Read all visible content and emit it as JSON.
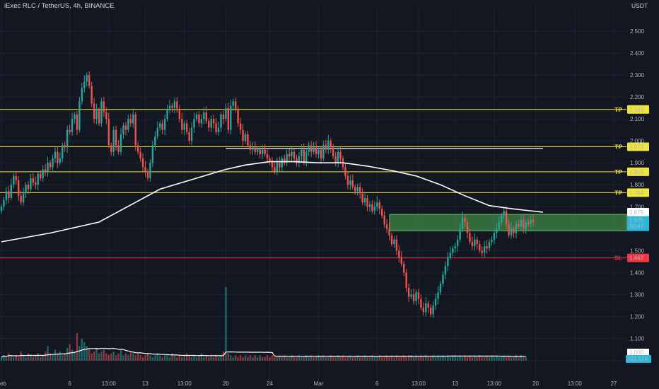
{
  "header": {
    "symbol_title": "iExec RLC / TetherUS, 4h, BINANCE",
    "currency": "USDT"
  },
  "colors": {
    "background": "#131722",
    "grid": "#1f2330",
    "up_candle": "#26a69a",
    "down_candle": "#ef5350",
    "tp_line": "#f2e53a",
    "sl_line": "#f23645",
    "zone_fill": "#4caf50",
    "moving_average": "#ffffff",
    "current_price_tag": "#2bb7da"
  },
  "chart_data": {
    "type": "candlestick",
    "symbol": "RLCUSDT",
    "timeframe": "4h",
    "exchange": "BINANCE",
    "y_axis": {
      "ylim": [
        1.0,
        2.61
      ],
      "ticks": [
        "2.500",
        "2.400",
        "2.300",
        "2.200",
        "2.100",
        "2.000",
        "1.900",
        "1.800",
        "1.700",
        "1.600",
        "1.500",
        "1.400",
        "1.300",
        "1.200",
        "1.100",
        "1.000"
      ]
    },
    "x_axis": {
      "ticks": [
        {
          "label": "Feb",
          "bar": 0
        },
        {
          "label": "6",
          "bar": 28
        },
        {
          "label": "13:00",
          "bar": 44
        },
        {
          "label": "13",
          "bar": 59
        },
        {
          "label": "13:00",
          "bar": 75
        },
        {
          "label": "20",
          "bar": 92
        },
        {
          "label": "24",
          "bar": 110
        },
        {
          "label": "Mar",
          "bar": 130
        },
        {
          "label": "6",
          "bar": 154
        },
        {
          "label": "13:00",
          "bar": 171
        },
        {
          "label": "13",
          "bar": 186
        },
        {
          "label": "13:00",
          "bar": 202
        },
        {
          "label": "20",
          "bar": 219
        },
        {
          "label": "13:00",
          "bar": 235
        },
        {
          "label": "27",
          "bar": 251
        }
      ]
    },
    "series_close": [
      1.7,
      1.73,
      1.77,
      1.74,
      1.8,
      1.84,
      1.82,
      1.75,
      1.72,
      1.76,
      1.8,
      1.78,
      1.83,
      1.81,
      1.8,
      1.85,
      1.83,
      1.87,
      1.86,
      1.9,
      1.88,
      1.92,
      1.95,
      1.9,
      1.92,
      1.98,
      1.97,
      2.05,
      2.04,
      2.1,
      2.12,
      2.05,
      2.18,
      2.24,
      2.27,
      2.3,
      2.25,
      2.17,
      2.1,
      2.14,
      2.08,
      2.18,
      2.13,
      2.1,
      1.98,
      1.95,
      2.05,
      1.98,
      1.95,
      2.03,
      2.07,
      2.05,
      2.1,
      2.08,
      2.12,
      1.98,
      1.95,
      1.92,
      1.88,
      1.86,
      1.83,
      1.9,
      1.98,
      2.02,
      2.06,
      2.08,
      2.05,
      2.1,
      2.14,
      2.16,
      2.15,
      2.18,
      2.14,
      2.1,
      2.05,
      2.08,
      2.04,
      2.0,
      2.06,
      2.1,
      2.12,
      2.08,
      2.1,
      2.13,
      2.09,
      2.06,
      2.1,
      2.08,
      2.04,
      2.06,
      2.12,
      2.1,
      2.15,
      2.05,
      2.16,
      2.18,
      2.14,
      2.08,
      2.05,
      2.0,
      2.03,
      1.98,
      1.96,
      1.97,
      1.95,
      1.96,
      1.94,
      1.96,
      1.94,
      1.92,
      1.91,
      1.88,
      1.86,
      1.9,
      1.88,
      1.92,
      1.9,
      1.94,
      1.93,
      1.95,
      1.92,
      1.9,
      1.93,
      1.96,
      1.9,
      1.95,
      1.98,
      1.95,
      1.97,
      1.94,
      1.96,
      1.92,
      1.98,
      1.96,
      2.0,
      1.97,
      1.93,
      1.9,
      1.95,
      1.92,
      1.88,
      1.84,
      1.8,
      1.82,
      1.79,
      1.77,
      1.79,
      1.76,
      1.72,
      1.74,
      1.7,
      1.71,
      1.68,
      1.7,
      1.72,
      1.69,
      1.66,
      1.62,
      1.6,
      1.57,
      1.53,
      1.55,
      1.5,
      1.47,
      1.44,
      1.4,
      1.33,
      1.29,
      1.3,
      1.27,
      1.31,
      1.28,
      1.24,
      1.22,
      1.26,
      1.24,
      1.21,
      1.25,
      1.28,
      1.31,
      1.35,
      1.39,
      1.43,
      1.47,
      1.49,
      1.51,
      1.52,
      1.55,
      1.6,
      1.65,
      1.63,
      1.58,
      1.54,
      1.52,
      1.55,
      1.53,
      1.5,
      1.49,
      1.52,
      1.51,
      1.54,
      1.55,
      1.58,
      1.6,
      1.63,
      1.66,
      1.68,
      1.62,
      1.57,
      1.6,
      1.58,
      1.62,
      1.61,
      1.64,
      1.6,
      1.63,
      1.62,
      1.64,
      1.63
    ],
    "moving_average": [
      [
        0,
        1.54
      ],
      [
        20,
        1.58
      ],
      [
        40,
        1.63
      ],
      [
        55,
        1.72
      ],
      [
        65,
        1.78
      ],
      [
        80,
        1.83
      ],
      [
        92,
        1.87
      ],
      [
        100,
        1.89
      ],
      [
        110,
        1.905
      ],
      [
        120,
        1.905
      ],
      [
        130,
        1.9
      ],
      [
        140,
        1.9
      ],
      [
        150,
        1.885
      ],
      [
        160,
        1.865
      ],
      [
        170,
        1.84
      ],
      [
        180,
        1.8
      ],
      [
        190,
        1.75
      ],
      [
        200,
        1.705
      ],
      [
        210,
        1.69
      ],
      [
        218,
        1.68
      ],
      [
        222,
        1.675
      ]
    ],
    "volume": [
      2,
      3,
      2,
      4,
      3,
      2,
      3,
      2,
      5,
      3,
      2,
      4,
      3,
      2,
      3,
      4,
      2,
      3,
      5,
      8,
      4,
      3,
      6,
      4,
      5,
      3,
      4,
      7,
      9,
      6,
      5,
      15,
      8,
      12,
      10,
      8,
      6,
      4,
      5,
      7,
      4,
      5,
      6,
      4,
      3,
      4,
      5,
      3,
      4,
      6,
      3,
      4,
      3,
      5,
      4,
      3,
      4,
      3,
      2,
      3,
      4,
      3,
      2,
      3,
      4,
      3,
      2,
      3,
      3,
      2,
      4,
      3,
      2,
      3,
      2,
      3,
      4,
      3,
      2,
      3,
      2,
      3,
      4,
      2,
      3,
      2,
      3,
      2,
      3,
      2,
      3,
      5,
      40,
      4,
      3,
      2,
      3,
      2,
      3,
      2,
      3,
      2,
      3,
      2,
      3,
      2,
      3,
      2,
      2,
      3,
      2,
      3,
      2,
      2,
      3,
      2,
      3,
      2,
      2,
      3,
      2,
      2,
      3,
      2,
      2,
      3,
      2,
      3,
      2,
      2,
      3,
      2,
      3,
      2,
      2,
      3,
      2,
      2,
      3,
      2,
      3,
      2,
      2,
      3,
      2,
      2,
      3,
      2,
      2,
      3,
      2,
      2,
      3,
      2,
      2,
      3,
      2,
      2,
      3,
      2,
      3,
      2,
      3,
      2,
      2,
      3,
      2,
      3,
      3,
      2,
      3,
      2,
      3,
      2,
      3,
      2,
      2,
      3,
      2,
      3,
      2,
      3,
      2,
      3,
      2,
      3,
      3,
      2,
      3,
      2,
      3,
      2,
      3,
      2,
      3,
      2,
      3,
      2,
      2,
      3,
      2,
      3,
      2,
      3,
      2,
      2,
      3,
      2,
      3,
      2,
      2,
      3,
      2,
      3,
      2,
      2
    ],
    "horizontal_levels": [
      {
        "label": "TP",
        "price": 2.143,
        "tag": "2.143",
        "color": "#f2e53a"
      },
      {
        "label": "TP",
        "price": 1.973,
        "tag": "1.973",
        "color": "#f2e53a"
      },
      {
        "label": "TP",
        "price": 1.859,
        "tag": "1.859",
        "color": "#f2e53a"
      },
      {
        "label": "TP",
        "price": 1.764,
        "tag": "1.764",
        "color": "#f2e53a"
      },
      {
        "label": "SL",
        "price": 1.467,
        "tag": "1.467",
        "color": "#f23645"
      }
    ],
    "resistance_segment": {
      "price": 1.965,
      "from_bar": 92,
      "to_bar": 222
    },
    "entry_zone": {
      "from_bar": 160,
      "to_bar": 262,
      "price_low": 1.59,
      "price_high": 1.665
    },
    "price_tags": {
      "moving_average": "1.675",
      "last_price": "1.635",
      "countdown": "30:47",
      "volume_ma": "1.000",
      "volume": "322.51K"
    }
  }
}
